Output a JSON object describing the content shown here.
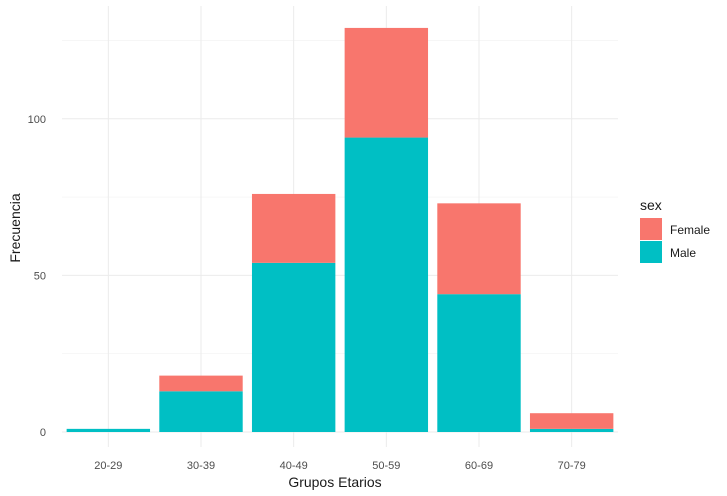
{
  "chart_data": {
    "type": "bar",
    "stacked": true,
    "categories": [
      "20-29",
      "30-39",
      "40-49",
      "50-59",
      "60-69",
      "70-79"
    ],
    "series": [
      {
        "name": "Male",
        "color": "#00BFC4",
        "values": [
          1,
          13,
          54,
          94,
          44,
          1
        ]
      },
      {
        "name": "Female",
        "color": "#F8766D",
        "values": [
          0,
          5,
          22,
          35,
          29,
          5
        ]
      }
    ],
    "xlabel": "Grupos Etarios",
    "ylabel": "Frecuencia",
    "ylim": [
      0,
      136
    ],
    "yticks": [
      0,
      50,
      100
    ],
    "grid": true,
    "legend": {
      "title": "sex",
      "placement": "right",
      "entries": [
        {
          "label": "Female",
          "color": "#F8766D"
        },
        {
          "label": "Male",
          "color": "#00BFC4"
        }
      ]
    }
  }
}
